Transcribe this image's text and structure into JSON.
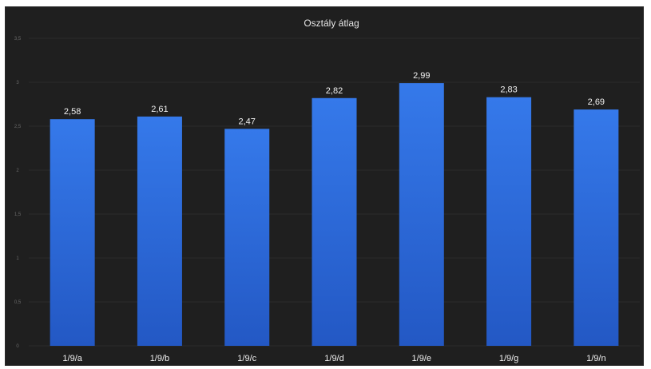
{
  "chart_data": {
    "type": "bar",
    "title": "Osztály átlag",
    "xlabel": "",
    "ylabel": "",
    "categories": [
      "1/9/a",
      "1/9/b",
      "1/9/c",
      "1/9/d",
      "1/9/e",
      "1/9/g",
      "1/9/n"
    ],
    "values": [
      2.58,
      2.61,
      2.47,
      2.82,
      2.99,
      2.83,
      2.69
    ],
    "value_labels": [
      "2,58",
      "2,61",
      "2,47",
      "2,82",
      "2,99",
      "2,83",
      "2,69"
    ],
    "ylim": [
      0,
      3.5
    ],
    "y_ticks": [
      0,
      0.5,
      1,
      1.5,
      2,
      2.5,
      3,
      3.5
    ],
    "y_tick_labels": [
      "0",
      "0,5",
      "1",
      "1,5",
      "2",
      "2,5",
      "3",
      "3,5"
    ],
    "grid": false,
    "legend": "none",
    "colors": {
      "background": "#1f1f1f",
      "bar": "#2f6fe0",
      "text": "#f0f0f0"
    }
  }
}
